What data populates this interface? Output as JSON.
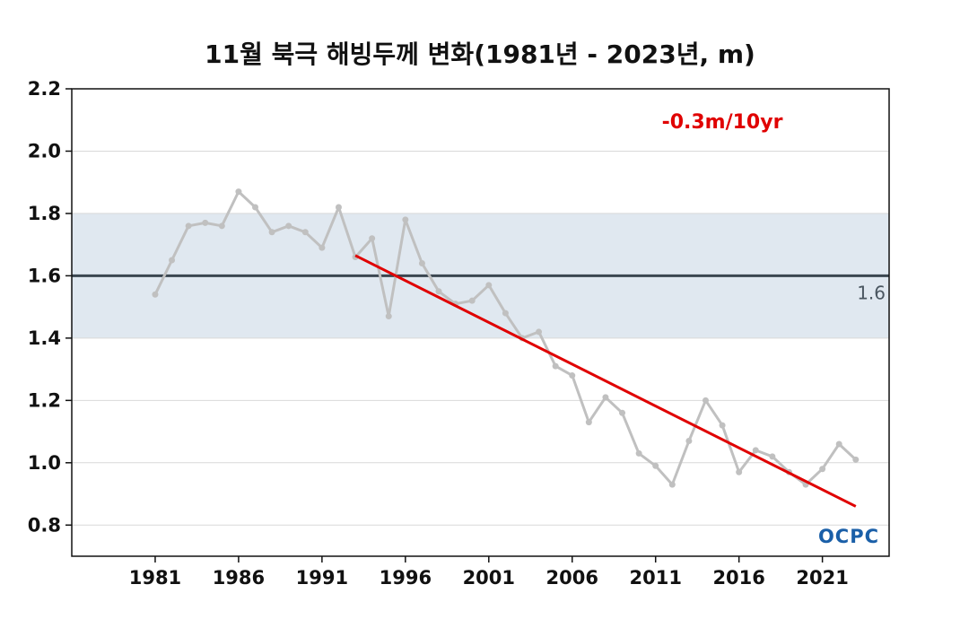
{
  "chart_data": {
    "type": "line",
    "title": "11월 북극 해빙두께 변화(1981년 - 2023년, m)",
    "xlabel": "",
    "ylabel": "",
    "xlim": [
      1976,
      2025
    ],
    "ylim": [
      0.7,
      2.2
    ],
    "x_ticks": [
      1981,
      1986,
      1991,
      1996,
      2001,
      2006,
      2011,
      2016,
      2021
    ],
    "y_ticks": [
      0.8,
      1.0,
      1.2,
      1.4,
      1.6,
      1.8,
      2.0,
      2.2
    ],
    "grid": true,
    "series": [
      {
        "x": [
          1981,
          1982,
          1983,
          1984,
          1985,
          1986,
          1987,
          1988,
          1989,
          1990,
          1991,
          1992,
          1993,
          1994,
          1995,
          1996,
          1997,
          1998,
          1999,
          2000,
          2001,
          2002,
          2003,
          2004,
          2005,
          2006,
          2007,
          2008,
          2009,
          2010,
          2011,
          2012,
          2013,
          2014,
          2015,
          2016,
          2017,
          2018,
          2019,
          2020,
          2021,
          2022,
          2023
        ],
        "values": [
          1.54,
          1.65,
          1.76,
          1.77,
          1.76,
          1.87,
          1.82,
          1.74,
          1.76,
          1.74,
          1.69,
          1.82,
          1.66,
          1.72,
          1.47,
          1.78,
          1.64,
          1.55,
          1.51,
          1.52,
          1.57,
          1.48,
          1.4,
          1.42,
          1.31,
          1.28,
          1.13,
          1.21,
          1.16,
          1.03,
          0.99,
          0.93,
          1.07,
          1.2,
          1.12,
          0.97,
          1.04,
          1.02,
          0.97,
          0.93,
          0.98,
          1.06,
          1.01
        ],
        "color": "#c0c0c0"
      }
    ],
    "trend": {
      "label": "-0.3m/10yr",
      "x": [
        1993,
        2023
      ],
      "values": [
        1.665,
        0.86
      ],
      "color": "#e00000"
    },
    "reference": {
      "label": "1.6",
      "value": 1.6,
      "band": [
        1.4,
        1.8
      ],
      "line_color": "#3a4650",
      "band_color": "#e0e8f0"
    },
    "logo": "OCPC",
    "logo_color": "#1a5fa8"
  }
}
